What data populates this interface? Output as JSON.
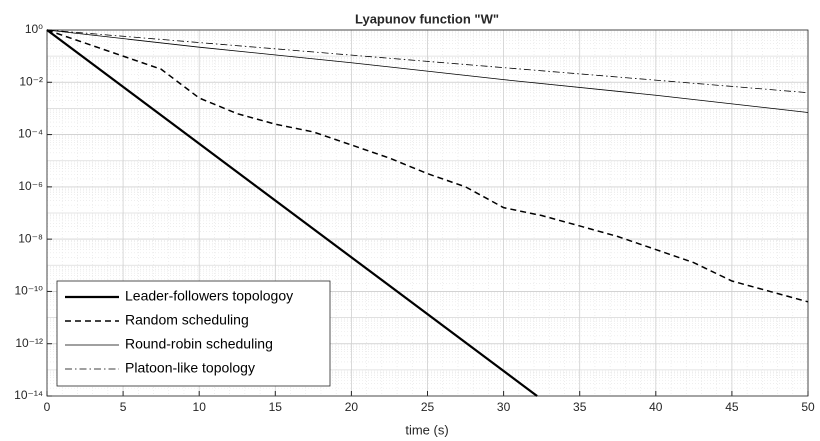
{
  "chart_data": {
    "type": "line",
    "title": "Lyapunov function \"W\"",
    "x_label": "time (s)",
    "xlim": [
      0,
      50
    ],
    "xticks": [
      0,
      5,
      10,
      15,
      20,
      25,
      30,
      35,
      40,
      45,
      50
    ],
    "ylim": [
      1e-14,
      1
    ],
    "log_y": true,
    "grid": true,
    "legend": "lower left",
    "yticks": [
      {
        "value": 1,
        "label": "10⁰"
      },
      {
        "value": 0.01,
        "label": "10⁻²"
      },
      {
        "value": 0.0001,
        "label": "10⁻⁴"
      },
      {
        "value": 1e-06,
        "label": "10⁻⁶"
      },
      {
        "value": 1e-08,
        "label": "10⁻⁸"
      },
      {
        "value": 1e-10,
        "label": "10⁻¹⁰"
      },
      {
        "value": 1e-12,
        "label": "10⁻¹²"
      },
      {
        "value": 1e-14,
        "label": "10⁻¹⁴"
      }
    ],
    "series": [
      {
        "name": "Leader-followers topologoy",
        "color": "#000000",
        "style": "solid-thick",
        "x": [
          0,
          32.2
        ],
        "values": [
          1,
          1e-14
        ]
      },
      {
        "name": "Random scheduling",
        "color": "#000000",
        "style": "dashed",
        "x": [
          0,
          2.5,
          5,
          7.5,
          10,
          12.5,
          15,
          17.5,
          20,
          22.5,
          25,
          27.5,
          30,
          32.5,
          35,
          37.5,
          40,
          42.5,
          45,
          47.5,
          50
        ],
        "values": [
          1,
          0.316,
          0.1,
          0.0316,
          0.0025,
          0.00063,
          0.00025,
          0.000126,
          4e-05,
          1.26e-05,
          3.2e-06,
          1e-06,
          1.6e-07,
          8e-08,
          3.2e-08,
          1.26e-08,
          4e-09,
          1.26e-09,
          2.5e-10,
          1e-10,
          4e-11
        ]
      },
      {
        "name": "Round-robin scheduling",
        "color": "#000000",
        "style": "solid-thin",
        "x": [
          0,
          10,
          20,
          30,
          40,
          50
        ],
        "values": [
          1,
          0.22,
          0.056,
          0.0126,
          0.0032,
          0.0007
        ]
      },
      {
        "name": "Platoon-like topology",
        "color": "#000000",
        "style": "dashdot",
        "x": [
          0,
          25,
          50
        ],
        "values": [
          1,
          0.063,
          0.004
        ]
      }
    ]
  }
}
